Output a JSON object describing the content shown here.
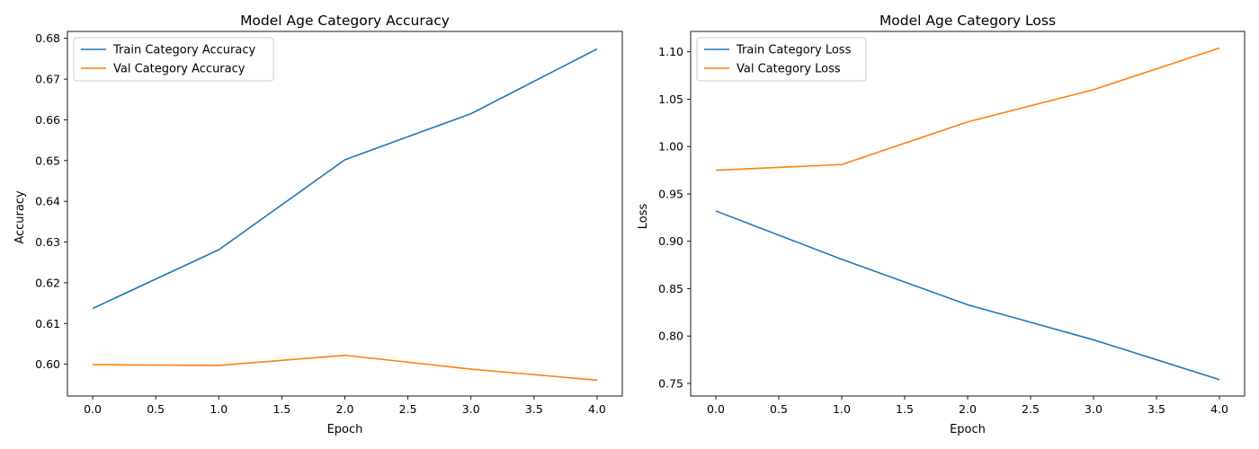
{
  "chart_data": [
    {
      "type": "line",
      "title": "Model Age Category Accuracy",
      "xlabel": "Epoch",
      "ylabel": "Accuracy",
      "x": [
        0,
        1,
        2,
        3,
        4
      ],
      "xlim": [
        -0.2,
        4.2
      ],
      "ylim": [
        0.5922,
        0.6817
      ],
      "xticks": [
        0.0,
        0.5,
        1.0,
        1.5,
        2.0,
        2.5,
        3.0,
        3.5,
        4.0
      ],
      "xtick_labels": [
        "0.0",
        "0.5",
        "1.0",
        "1.5",
        "2.0",
        "2.5",
        "3.0",
        "3.5",
        "4.0"
      ],
      "yticks": [
        0.6,
        0.61,
        0.62,
        0.63,
        0.64,
        0.65,
        0.66,
        0.67,
        0.68
      ],
      "ytick_labels": [
        "0.60",
        "0.61",
        "0.62",
        "0.63",
        "0.64",
        "0.65",
        "0.66",
        "0.67",
        "0.68"
      ],
      "grid": false,
      "legend_position": "top-left",
      "series": [
        {
          "name": "Train Category Accuracy",
          "color": "#1f77b4",
          "values": [
            0.6137,
            0.6281,
            0.6502,
            0.6615,
            0.6774
          ]
        },
        {
          "name": "Val Category Accuracy",
          "color": "#ff7f0e",
          "values": [
            0.5999,
            0.5997,
            0.6022,
            0.5988,
            0.5961
          ]
        }
      ]
    },
    {
      "type": "line",
      "title": "Model Age Category Loss",
      "xlabel": "Epoch",
      "ylabel": "Loss",
      "x": [
        0,
        1,
        2,
        3,
        4
      ],
      "xlim": [
        -0.2,
        4.2
      ],
      "ylim": [
        0.7367,
        1.1215
      ],
      "xticks": [
        0.0,
        0.5,
        1.0,
        1.5,
        2.0,
        2.5,
        3.0,
        3.5,
        4.0
      ],
      "xtick_labels": [
        "0.0",
        "0.5",
        "1.0",
        "1.5",
        "2.0",
        "2.5",
        "3.0",
        "3.5",
        "4.0"
      ],
      "yticks": [
        0.75,
        0.8,
        0.85,
        0.9,
        0.95,
        1.0,
        1.05,
        1.1
      ],
      "ytick_labels": [
        "0.75",
        "0.80",
        "0.85",
        "0.90",
        "0.95",
        "1.00",
        "1.05",
        "1.10"
      ],
      "grid": false,
      "legend_position": "top-left",
      "series": [
        {
          "name": "Train Category Loss",
          "color": "#1f77b4",
          "values": [
            0.932,
            0.881,
            0.833,
            0.796,
            0.754
          ]
        },
        {
          "name": "Val Category Loss",
          "color": "#ff7f0e",
          "values": [
            0.975,
            0.981,
            1.026,
            1.06,
            1.104
          ]
        }
      ]
    }
  ]
}
